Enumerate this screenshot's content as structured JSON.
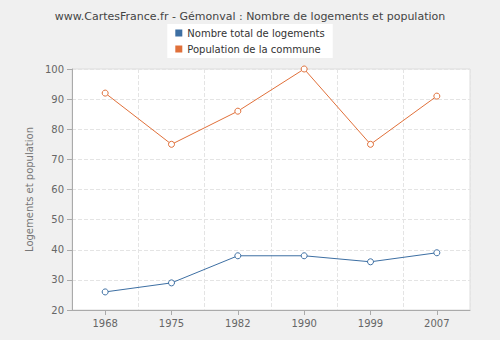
{
  "chart_data": {
    "type": "line",
    "title": "www.CartesFrance.fr - Gémonval : Nombre de logements et population",
    "y_label": "Logements et population",
    "categories": [
      "1968",
      "1975",
      "1982",
      "1990",
      "1999",
      "2007"
    ],
    "series": [
      {
        "name": "Nombre total de logements",
        "color": "#3d6fa3",
        "values": [
          26,
          29,
          38,
          38,
          36,
          39
        ]
      },
      {
        "name": "Population de la commune",
        "color": "#e0703a",
        "values": [
          92,
          75,
          86,
          100,
          75,
          91
        ]
      }
    ],
    "ylim": [
      20,
      100
    ],
    "yticks": [
      20,
      30,
      40,
      50,
      60,
      70,
      80,
      90,
      100
    ],
    "grid": true,
    "legend": "top",
    "marker": "circle"
  }
}
